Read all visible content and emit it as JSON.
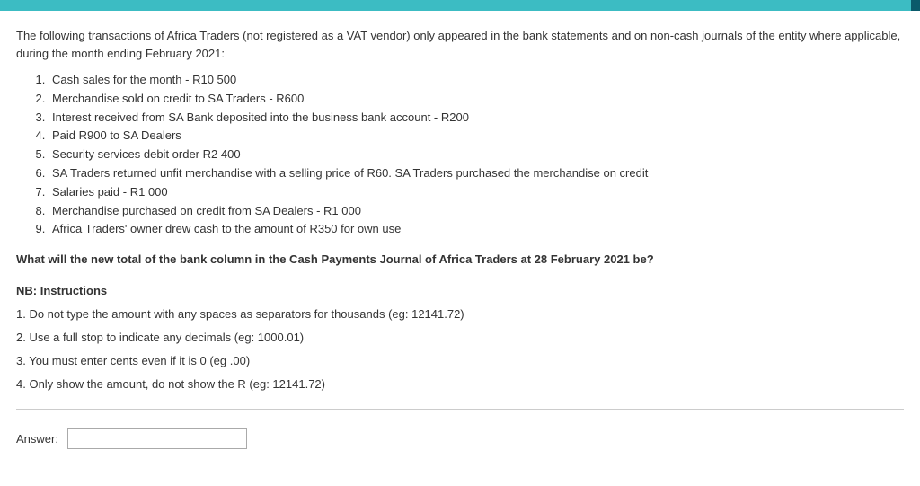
{
  "colors": {
    "topbar": "#3cbcc3",
    "topbar_edge": "#0a5a6b",
    "text": "#333333",
    "divider": "#cccccc",
    "input_border": "#aaaaaa",
    "background": "#ffffff"
  },
  "intro": "The following transactions of Africa Traders (not registered as a VAT vendor) only appeared in the bank statements and on non-cash journals of the entity where applicable, during the month ending February 2021:",
  "transactions": [
    "Cash sales for the month - R10 500",
    "Merchandise sold on credit to SA Traders - R600",
    "Interest received from SA Bank deposited into the business bank account - R200",
    "Paid R900 to SA Dealers",
    "Security services debit order R2 400",
    "SA Traders returned unfit merchandise with a selling price of R60. SA Traders purchased the merchandise on credit",
    "Salaries paid - R1 000",
    "Merchandise purchased on credit from SA Dealers - R1 000",
    "Africa Traders' owner drew cash to the amount of R350 for own use"
  ],
  "question": "What will the new total of the bank column in the Cash Payments Journal of Africa Traders at 28 February 2021 be?",
  "nb_label": "NB: Instructions",
  "instructions": [
    "1. Do not type the amount with any spaces as separators for thousands (eg: 12141.72)",
    "2. Use a full stop to indicate any decimals (eg: 1000.01)",
    "3. You must enter cents even if it is 0 (eg .00)",
    "4. Only show the amount, do not show the R (eg: 12141.72)"
  ],
  "answer_label": "Answer:",
  "answer_value": ""
}
